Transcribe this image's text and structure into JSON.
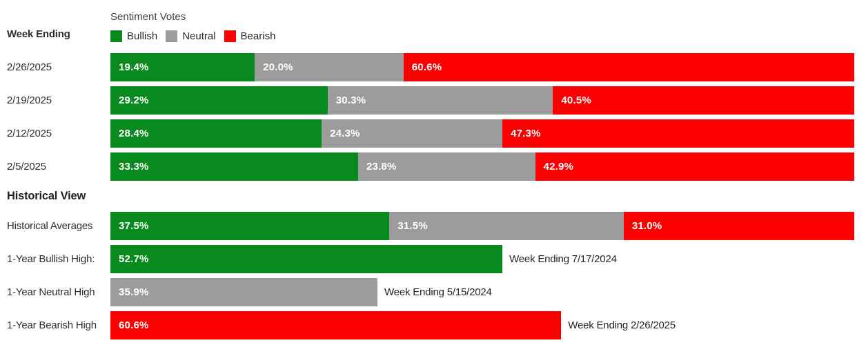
{
  "header": {
    "week_ending_label": "Week Ending",
    "legend_title": "Sentiment Votes",
    "legend": [
      {
        "key": "bullish",
        "label": "Bullish",
        "color": "#088a1e"
      },
      {
        "key": "neutral",
        "label": "Neutral",
        "color": "#9c9c9c"
      },
      {
        "key": "bearish",
        "label": "Bearish",
        "color": "#fb0000"
      }
    ]
  },
  "colors": {
    "bullish": "#088a1e",
    "neutral": "#9c9c9c",
    "bearish": "#fb0000"
  },
  "historical": {
    "section_title": "Historical View"
  },
  "chart_data": {
    "type": "bar",
    "orientation": "horizontal",
    "stacked": true,
    "unit": "%",
    "xlim": [
      0,
      100
    ],
    "title": "Sentiment Votes",
    "legend_entries": [
      "Bullish",
      "Neutral",
      "Bearish"
    ],
    "series_keys": [
      "bullish",
      "neutral",
      "bearish"
    ],
    "weekly": [
      {
        "week_ending": "2/26/2025",
        "bullish": 19.4,
        "neutral": 20.0,
        "bearish": 60.6
      },
      {
        "week_ending": "2/19/2025",
        "bullish": 29.2,
        "neutral": 30.3,
        "bearish": 40.5
      },
      {
        "week_ending": "2/12/2025",
        "bullish": 28.4,
        "neutral": 24.3,
        "bearish": 47.3
      },
      {
        "week_ending": "2/5/2025",
        "bullish": 33.3,
        "neutral": 23.8,
        "bearish": 42.9
      }
    ],
    "historical_averages": {
      "label": "Historical Averages",
      "bullish": 37.5,
      "neutral": 31.5,
      "bearish": 31.0
    },
    "extremes": [
      {
        "label": "1-Year Bullish High:",
        "series": "bullish",
        "value": 52.7,
        "annotation": "Week Ending 7/17/2024"
      },
      {
        "label": "1-Year Neutral High",
        "series": "neutral",
        "value": 35.9,
        "annotation": "Week Ending 5/15/2024"
      },
      {
        "label": "1-Year Bearish High",
        "series": "bearish",
        "value": 60.6,
        "annotation": "Week Ending 2/26/2025"
      }
    ]
  }
}
